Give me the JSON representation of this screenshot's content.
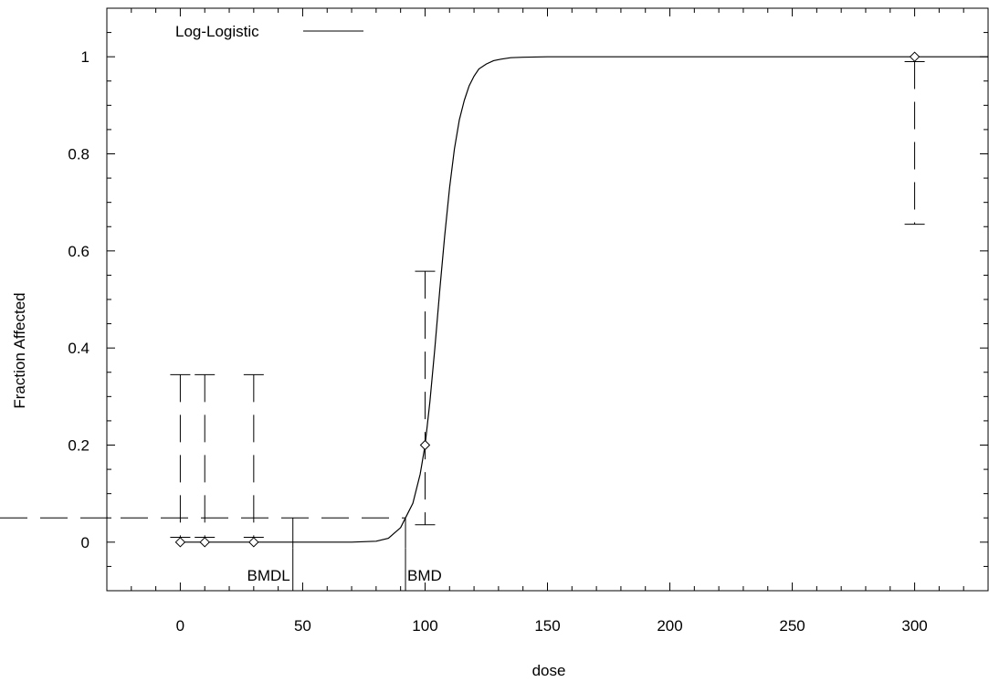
{
  "chart_data": {
    "type": "line",
    "title": "",
    "xlabel": "dose",
    "ylabel": "Fraction Affected",
    "xlim": [
      -30,
      330
    ],
    "ylim": [
      -0.1,
      1.1
    ],
    "xticks": [
      0,
      50,
      100,
      150,
      200,
      250,
      300
    ],
    "xtick_labels": [
      "0",
      "50",
      "100",
      "150",
      "200",
      "250",
      "300"
    ],
    "yticks": [
      0,
      0.2,
      0.4,
      0.6,
      0.8,
      1
    ],
    "ytick_labels": [
      "0",
      "0.2",
      "0.4",
      "0.6",
      "0.8",
      "1"
    ],
    "legend": {
      "position": "top-left",
      "entries": [
        "Log-Logistic"
      ]
    },
    "series": [
      {
        "name": "Log-Logistic",
        "style": "solid",
        "x": [
          0,
          20,
          40,
          60,
          70,
          80,
          85,
          90,
          92,
          95,
          98,
          100,
          102,
          104,
          106,
          108,
          110,
          112,
          114,
          116,
          118,
          120,
          122,
          125,
          128,
          131,
          135,
          140,
          150,
          170,
          200,
          250,
          300,
          330
        ],
        "y": [
          0,
          0,
          0,
          0,
          0,
          0.002,
          0.008,
          0.03,
          0.05,
          0.08,
          0.14,
          0.2,
          0.29,
          0.4,
          0.52,
          0.63,
          0.73,
          0.81,
          0.87,
          0.91,
          0.94,
          0.96,
          0.975,
          0.985,
          0.992,
          0.995,
          0.998,
          0.999,
          1,
          1,
          1,
          1,
          1,
          1
        ]
      }
    ],
    "observations": {
      "marker": "diamond",
      "points": [
        {
          "x": 0,
          "y": 0,
          "lower": 0.01,
          "upper": 0.345
        },
        {
          "x": 10,
          "y": 0,
          "lower": 0.01,
          "upper": 0.345
        },
        {
          "x": 30,
          "y": 0,
          "lower": 0.01,
          "upper": 0.345
        },
        {
          "x": 100,
          "y": 0.2,
          "lower": 0.036,
          "upper": 0.558
        },
        {
          "x": 300,
          "y": 1,
          "lower": 0.655,
          "upper": 0.99
        }
      ]
    },
    "bmr": 0.05,
    "bmd": {
      "label": "BMD",
      "x": 92
    },
    "bmdl": {
      "label": "BMDL",
      "x": 46
    }
  }
}
